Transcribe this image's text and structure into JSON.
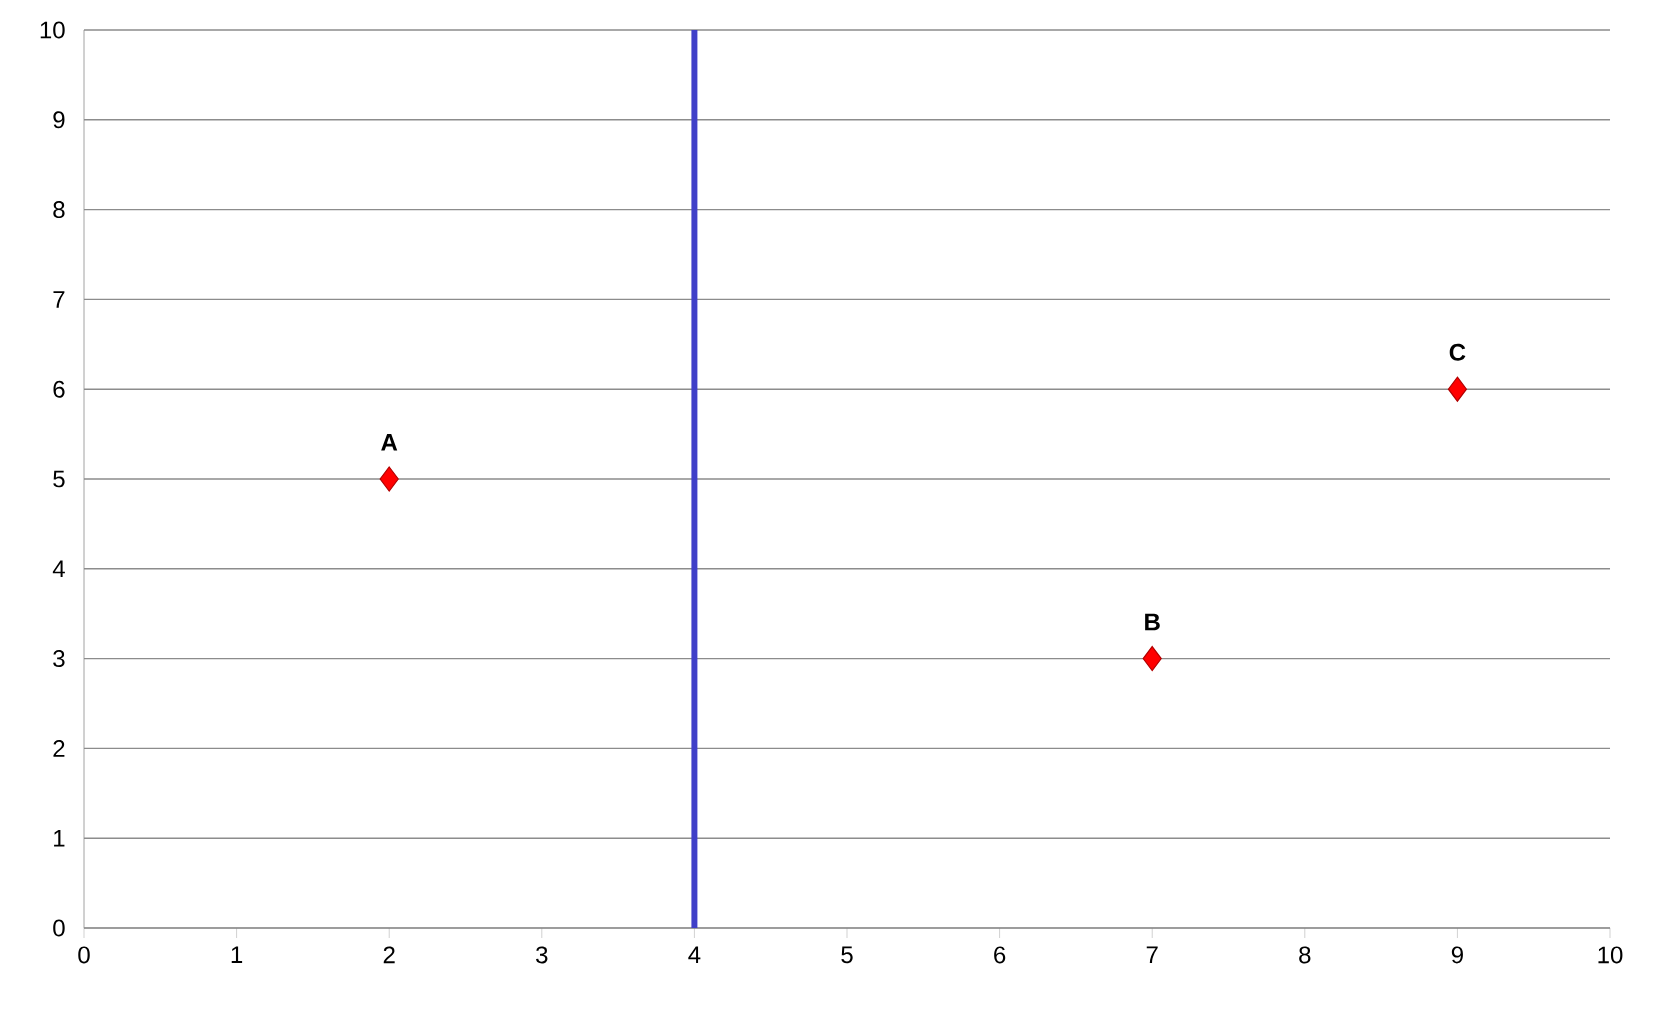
{
  "chart_data": {
    "type": "scatter",
    "x": [
      2,
      7,
      9
    ],
    "values": [
      5,
      3,
      6
    ],
    "color": "#ff0000",
    "marker": "diamond",
    "xlim": [
      0,
      10
    ],
    "xticks": [
      0,
      1,
      2,
      3,
      4,
      5,
      6,
      7,
      8,
      9,
      10
    ],
    "ylim": [
      0,
      10
    ],
    "yticks": [
      0,
      1,
      2,
      3,
      4,
      5,
      6,
      7,
      8,
      9,
      10
    ],
    "grid": "y",
    "ref_lines": [
      {
        "axis": "x",
        "value": 4,
        "color": "#4040c8"
      }
    ],
    "annotations": [
      {
        "text": "A",
        "x": 2,
        "y": 5
      },
      {
        "text": "B",
        "x": 7,
        "y": 3
      },
      {
        "text": "C",
        "x": 9,
        "y": 6
      }
    ]
  }
}
